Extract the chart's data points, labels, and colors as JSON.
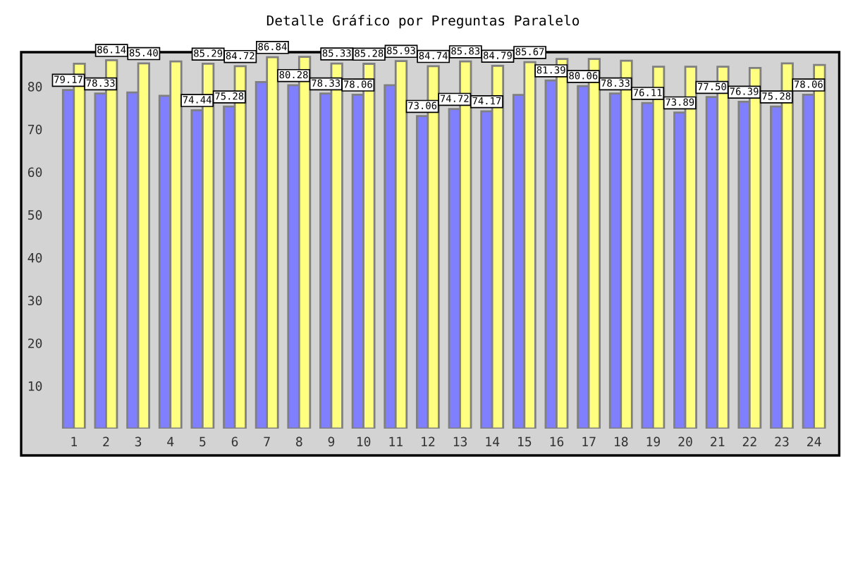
{
  "chart_data": {
    "type": "bar",
    "title": "Detalle Gráfico por Preguntas Paralelo",
    "categories": [
      "1",
      "2",
      "3",
      "4",
      "5",
      "6",
      "7",
      "8",
      "9",
      "10",
      "11",
      "12",
      "13",
      "14",
      "15",
      "16",
      "17",
      "18",
      "19",
      "20",
      "21",
      "22",
      "23",
      "24"
    ],
    "series": [
      {
        "color": "#8080ff",
        "values": [
          79.17,
          78.33,
          78.6,
          77.8,
          74.44,
          75.28,
          81.0,
          80.28,
          78.33,
          78.06,
          80.28,
          73.06,
          74.72,
          74.17,
          78.0,
          81.39,
          80.06,
          78.33,
          76.11,
          73.89,
          77.5,
          76.39,
          75.28,
          78.06
        ],
        "value_labels": [
          "79.17",
          "78.33",
          null,
          null,
          "74.44",
          "75.28",
          null,
          "80.28",
          "78.33",
          "78.06",
          null,
          "73.06",
          "74.72",
          "74.17",
          null,
          "81.39",
          "80.06",
          "78.33",
          "76.11",
          "73.89",
          "77.50",
          "76.39",
          "75.28",
          "78.06"
        ]
      },
      {
        "color": "#ffff80",
        "values": [
          85.3,
          86.14,
          85.4,
          85.82,
          85.29,
          84.72,
          86.84,
          86.9,
          85.33,
          85.28,
          85.93,
          84.74,
          85.83,
          84.79,
          85.67,
          86.4,
          86.4,
          86.0,
          84.6,
          84.6,
          84.6,
          84.3,
          85.4,
          85.0
        ],
        "value_labels": [
          null,
          "86.14",
          "85.40",
          null,
          "85.29",
          "84.72",
          "86.84",
          null,
          "85.33",
          "85.28",
          "85.93",
          "84.74",
          "85.83",
          "84.79",
          "85.67",
          null,
          null,
          null,
          null,
          null,
          null,
          null,
          null,
          null
        ]
      }
    ],
    "ylim": [
      0,
      88
    ],
    "yticks": [
      10,
      20,
      30,
      40,
      50,
      60,
      70,
      80
    ],
    "grid": false,
    "legend": false
  }
}
